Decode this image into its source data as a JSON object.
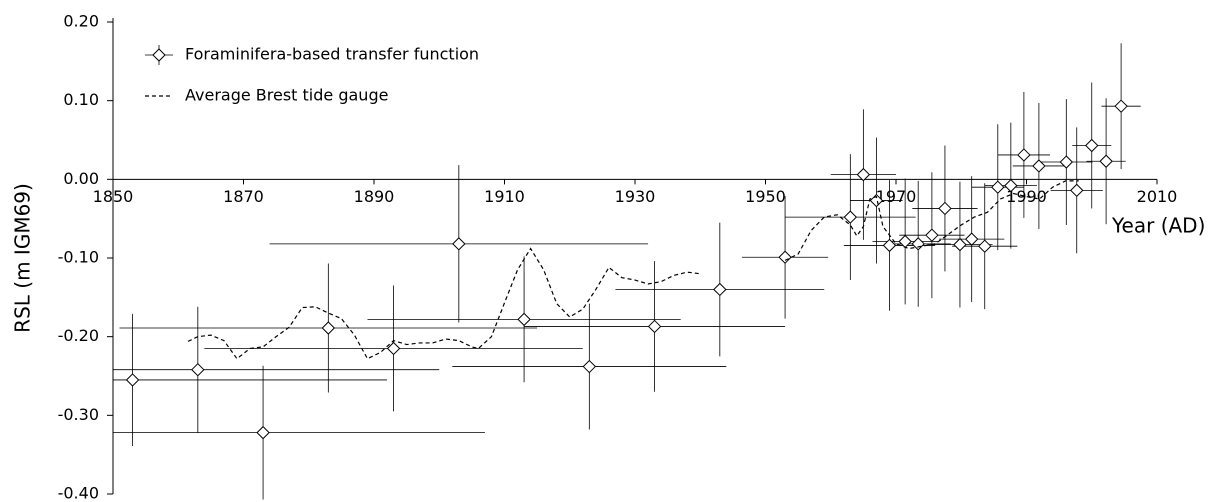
{
  "chart_data": {
    "type": "scatter",
    "xlabel": "Year (AD)",
    "ylabel": "RSL (m IGM69)",
    "xlim": [
      1850,
      2010
    ],
    "ylim": [
      -0.4,
      0.2
    ],
    "xticks": [
      1850,
      1870,
      1890,
      1910,
      1930,
      1950,
      1970,
      1990,
      2010
    ],
    "yticks": [
      {
        "value": 0.2,
        "label": "0.20"
      },
      {
        "value": 0.1,
        "label": "0.10"
      },
      {
        "value": 0,
        "label": "0.00"
      },
      {
        "value": -0.1,
        "label": "-0.10"
      },
      {
        "value": -0.2,
        "label": "-0.20"
      },
      {
        "value": -0.3,
        "label": "-0.30"
      },
      {
        "value": -0.4,
        "label": "-0.40"
      }
    ],
    "legend": "upper left",
    "series": [
      {
        "name": "Foraminifera-based transfer function",
        "color": "#000000",
        "marker": "diamond",
        "x": [
          1853,
          1863,
          1873,
          1883,
          1893,
          1903,
          1913,
          1923,
          1933,
          1943,
          1953,
          1963,
          1965,
          1967,
          1969,
          1971.4,
          1973.4,
          1975.5,
          1977.5,
          1979.8,
          1981.6,
          1983.6,
          1985.6,
          1987.6,
          1989.6,
          1991.9,
          1996.1,
          1997.7,
          2000,
          2002.2,
          2004.5
        ],
        "values": [
          -0.255,
          -0.242,
          -0.322,
          -0.189,
          -0.215,
          -0.082,
          -0.178,
          -0.238,
          -0.187,
          -0.14,
          -0.099,
          -0.048,
          0.006,
          -0.027,
          -0.084,
          -0.079,
          -0.082,
          -0.071,
          -0.037,
          -0.083,
          -0.076,
          -0.085,
          -0.01,
          -0.008,
          0.031,
          0.017,
          0.022,
          -0.014,
          0.043,
          0.023,
          0.093
        ],
        "xerr": [
          39,
          37,
          34,
          32,
          29,
          29,
          24,
          21,
          20,
          16,
          6.6,
          10,
          5,
          4,
          7,
          5,
          5,
          5,
          5,
          5,
          5,
          5,
          4,
          4,
          4,
          4,
          4,
          4,
          3,
          3,
          3
        ],
        "yerr": [
          0.084,
          0.08,
          0.085,
          0.082,
          0.08,
          0.1,
          0.08,
          0.08,
          0.083,
          0.085,
          0.078,
          0.08,
          0.083,
          0.08,
          0.083,
          0.08,
          0.08,
          0.08,
          0.08,
          0.08,
          0.08,
          0.08,
          0.08,
          0.08,
          0.08,
          0.08,
          0.08,
          0.08,
          0.08,
          0.08,
          0.08
        ]
      },
      {
        "name": "Average Brest tide gauge",
        "color": "#000000",
        "style": "dashed",
        "x": [
          1861.5,
          1863,
          1865,
          1867,
          1869,
          1871,
          1873,
          1875,
          1877,
          1879,
          1881,
          1883,
          1885,
          1887,
          1889,
          1891,
          1893,
          1895,
          1897,
          1899,
          1901,
          1903,
          1905,
          1906,
          1908,
          1910,
          1912,
          1914,
          1916,
          1918,
          1920,
          1922,
          1924,
          1926,
          1928,
          1930,
          1932,
          1934,
          1936,
          1938,
          1940,
          null,
          1953,
          1955,
          1957,
          1959,
          1961,
          1963,
          1964,
          1965,
          1966,
          1967,
          1968,
          1970,
          1972,
          1974,
          1976,
          1978,
          1980,
          1982,
          1984,
          1986,
          1988,
          1990,
          1992,
          1994,
          1996,
          1998
        ],
        "values": [
          -0.206,
          -0.2,
          -0.198,
          -0.205,
          -0.228,
          -0.215,
          -0.213,
          -0.2,
          -0.188,
          -0.163,
          -0.162,
          -0.17,
          -0.177,
          -0.198,
          -0.228,
          -0.22,
          -0.205,
          -0.21,
          -0.208,
          -0.208,
          -0.203,
          -0.205,
          -0.213,
          -0.215,
          -0.2,
          -0.157,
          -0.115,
          -0.088,
          -0.115,
          -0.158,
          -0.175,
          -0.165,
          -0.14,
          -0.112,
          -0.125,
          -0.128,
          -0.133,
          -0.13,
          -0.122,
          -0.118,
          -0.12,
          null,
          -0.103,
          -0.095,
          -0.065,
          -0.048,
          -0.045,
          -0.058,
          -0.072,
          -0.06,
          -0.025,
          -0.022,
          -0.06,
          -0.082,
          -0.088,
          -0.085,
          -0.082,
          -0.07,
          -0.058,
          -0.048,
          -0.042,
          -0.025,
          -0.018,
          -0.022,
          -0.025,
          -0.01,
          -0.002,
          -0.002
        ]
      }
    ]
  }
}
